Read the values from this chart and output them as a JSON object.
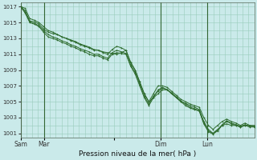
{
  "title": "Pression niveau de la mer( hPa )",
  "bg_color": "#caeaea",
  "grid_color": "#99ccbb",
  "line_color": "#2d6b2d",
  "ylim": [
    1000.5,
    1017.5
  ],
  "yticks": [
    1001,
    1003,
    1005,
    1007,
    1009,
    1011,
    1013,
    1015,
    1017
  ],
  "xtick_labels": [
    "Sam",
    "Mar",
    "",
    "Dim",
    "Lun"
  ],
  "xtick_positions": [
    0,
    12,
    48,
    72,
    96
  ],
  "vline_positions": [
    0,
    12,
    72,
    96
  ],
  "vline_color": "#336633",
  "total_hours": 120,
  "series": [
    [
      1017,
      1016.5,
      1015.2,
      1015.1,
      1014.8,
      1014.2,
      1013.8,
      1013.6,
      1013.5,
      1013.2,
      1013.0,
      1012.8,
      1012.6,
      1012.3,
      1012.1,
      1011.9,
      1011.6,
      1011.5,
      1011.3,
      1011.2,
      1011.1,
      1011.0,
      1011.2,
      1011.5,
      1010.0,
      1009.0,
      1007.5,
      1006.0,
      1005.0,
      1005.5,
      1006.5,
      1006.8,
      1006.5,
      1006.0,
      1005.5,
      1005.0,
      1004.8,
      1004.5,
      1004.3,
      1004.0,
      1002.5,
      1001.5,
      1001.0,
      1001.5,
      1002.0,
      1002.2,
      1002.0,
      1002.0,
      1001.8,
      1002.0,
      1002.0,
      1001.8
    ],
    [
      1017,
      1016.2,
      1015.0,
      1014.8,
      1014.5,
      1013.8,
      1013.2,
      1013.0,
      1012.8,
      1012.5,
      1012.3,
      1012.0,
      1011.8,
      1011.5,
      1011.3,
      1011.0,
      1010.8,
      1010.8,
      1010.5,
      1010.3,
      1011.0,
      1011.2,
      1011.1,
      1011.0,
      1009.5,
      1008.5,
      1007.0,
      1005.5,
      1004.5,
      1005.5,
      1006.0,
      1006.5,
      1006.5,
      1006.0,
      1005.5,
      1005.0,
      1004.5,
      1004.2,
      1004.0,
      1003.8,
      1002.2,
      1001.2,
      1000.9,
      1001.3,
      1002.0,
      1002.5,
      1002.2,
      1002.0,
      1001.8,
      1002.0,
      1001.8,
      1001.8
    ],
    [
      1017,
      1016.3,
      1015.1,
      1014.9,
      1014.6,
      1014.0,
      1013.5,
      1013.2,
      1013.0,
      1012.7,
      1012.5,
      1012.2,
      1012.0,
      1011.7,
      1011.5,
      1011.3,
      1011.0,
      1011.0,
      1010.7,
      1010.5,
      1011.2,
      1011.5,
      1011.3,
      1011.1,
      1009.7,
      1008.7,
      1007.2,
      1005.7,
      1004.7,
      1005.7,
      1006.3,
      1006.7,
      1006.5,
      1006.1,
      1005.6,
      1005.1,
      1004.7,
      1004.3,
      1004.1,
      1003.9,
      1002.3,
      1001.3,
      1001.0,
      1001.4,
      1002.1,
      1002.6,
      1002.3,
      1002.1,
      1001.9,
      1002.1,
      1001.9,
      1001.9
    ],
    [
      1017,
      1016.8,
      1015.5,
      1015.3,
      1015.0,
      1014.5,
      1014.0,
      1013.8,
      1013.5,
      1013.2,
      1013.0,
      1012.7,
      1012.5,
      1012.2,
      1012.0,
      1011.8,
      1011.5,
      1011.5,
      1011.2,
      1011.0,
      1011.6,
      1012.0,
      1011.8,
      1011.5,
      1010.0,
      1009.0,
      1007.5,
      1006.0,
      1005.0,
      1006.0,
      1007.0,
      1007.0,
      1006.8,
      1006.3,
      1005.8,
      1005.3,
      1005.0,
      1004.7,
      1004.5,
      1004.3,
      1003.0,
      1002.0,
      1001.5,
      1002.0,
      1002.5,
      1002.8,
      1002.5,
      1002.3,
      1002.0,
      1002.3,
      1002.0,
      1002.0
    ]
  ]
}
